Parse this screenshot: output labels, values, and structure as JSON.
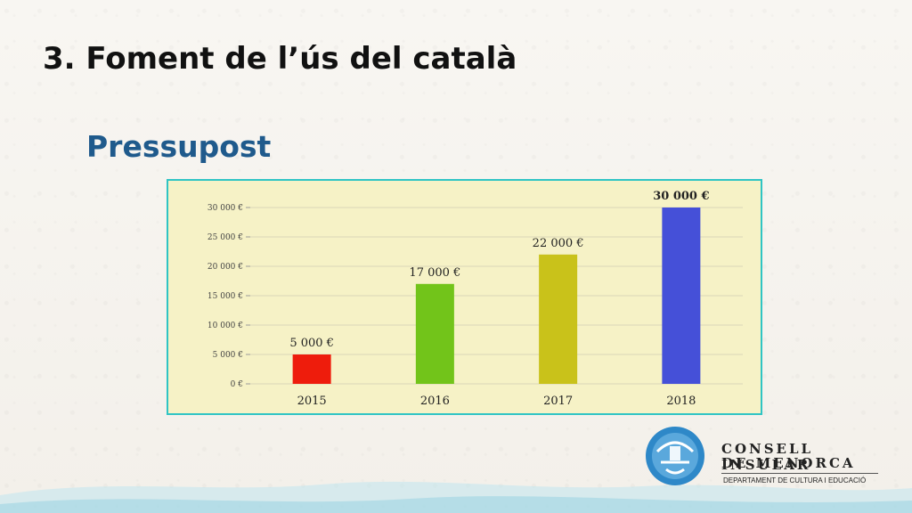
{
  "slide": {
    "title": "3. Foment de l’ús del català",
    "subtitle": "Pressupost"
  },
  "logo": {
    "line1": "CONSELL INSULAR",
    "line2": "DE MENORCA",
    "department": "DEPARTAMENT DE CULTURA I EDUCACIÓ"
  },
  "chart_data": {
    "type": "bar",
    "categories": [
      "2015",
      "2016",
      "2017",
      "2018"
    ],
    "values": [
      5000,
      17000,
      22000,
      30000
    ],
    "data_labels": [
      "5 000 €",
      "17 000 €",
      "22 000 €",
      "30 000 €"
    ],
    "colors": [
      "#ee1c0c",
      "#72c41a",
      "#c9c21a",
      "#4550d8"
    ],
    "yticks": [
      0,
      5000,
      10000,
      15000,
      20000,
      25000,
      30000
    ],
    "ytick_labels": [
      "0 €",
      "5 000 €",
      "10 000 €",
      "15 000 €",
      "20 000 €",
      "25 000 €",
      "30 000 €"
    ],
    "ylim": [
      0,
      30000
    ],
    "grid": true,
    "title": "",
    "xlabel": "",
    "ylabel": "",
    "background": "#f6f2c6"
  }
}
